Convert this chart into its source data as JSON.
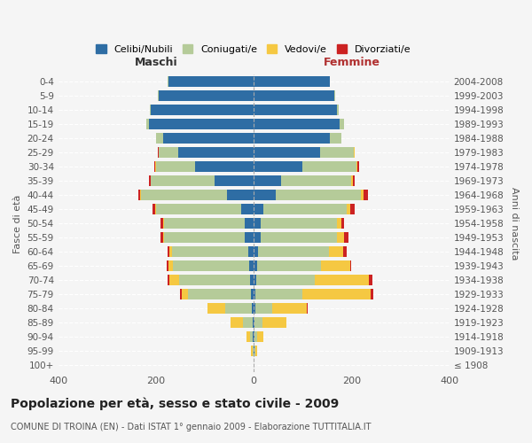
{
  "age_groups": [
    "100+",
    "95-99",
    "90-94",
    "85-89",
    "80-84",
    "75-79",
    "70-74",
    "65-69",
    "60-64",
    "55-59",
    "50-54",
    "45-49",
    "40-44",
    "35-39",
    "30-34",
    "25-29",
    "20-24",
    "15-19",
    "10-14",
    "5-9",
    "0-4"
  ],
  "birth_years": [
    "≤ 1908",
    "1909-1913",
    "1914-1918",
    "1919-1923",
    "1924-1928",
    "1929-1933",
    "1934-1938",
    "1939-1943",
    "1944-1948",
    "1949-1953",
    "1954-1958",
    "1959-1963",
    "1964-1968",
    "1969-1973",
    "1974-1978",
    "1979-1983",
    "1984-1988",
    "1989-1993",
    "1994-1998",
    "1999-2003",
    "2004-2008"
  ],
  "colors": {
    "celibe": "#2e6da4",
    "coniugato": "#b5cb99",
    "vedovo": "#f5c842",
    "divorziato": "#cc2222"
  },
  "maschi": {
    "celibe": [
      0,
      1,
      2,
      2,
      4,
      5,
      8,
      10,
      12,
      18,
      18,
      25,
      55,
      80,
      120,
      155,
      185,
      215,
      210,
      195,
      175
    ],
    "coniugato": [
      0,
      2,
      5,
      20,
      55,
      130,
      145,
      155,
      155,
      165,
      165,
      175,
      175,
      130,
      80,
      40,
      15,
      5,
      3,
      2,
      1
    ],
    "vedovo": [
      0,
      2,
      8,
      25,
      35,
      12,
      20,
      10,
      5,
      3,
      3,
      2,
      2,
      1,
      1,
      0,
      0,
      0,
      0,
      0,
      0
    ],
    "divorziato": [
      0,
      0,
      0,
      0,
      0,
      3,
      3,
      3,
      5,
      5,
      5,
      5,
      5,
      3,
      2,
      1,
      0,
      0,
      0,
      0,
      0
    ]
  },
  "femmine": {
    "nubile": [
      0,
      1,
      2,
      2,
      3,
      4,
      5,
      7,
      8,
      15,
      15,
      20,
      45,
      55,
      100,
      135,
      155,
      175,
      170,
      165,
      155
    ],
    "coniugata": [
      0,
      2,
      5,
      15,
      35,
      95,
      120,
      130,
      145,
      155,
      155,
      170,
      175,
      145,
      110,
      70,
      25,
      10,
      3,
      2,
      1
    ],
    "vedova": [
      0,
      3,
      12,
      50,
      70,
      140,
      110,
      60,
      30,
      15,
      10,
      8,
      5,
      3,
      2,
      1,
      0,
      0,
      0,
      0,
      0
    ],
    "divorziata": [
      0,
      0,
      0,
      0,
      3,
      5,
      8,
      3,
      8,
      8,
      5,
      8,
      8,
      3,
      3,
      1,
      0,
      0,
      0,
      0,
      0
    ]
  },
  "xlim": 400,
  "title": "Popolazione per età, sesso e stato civile - 2009",
  "subtitle": "COMUNE DI TROINA (EN) - Dati ISTAT 1° gennaio 2009 - Elaborazione TUTTITALIA.IT",
  "ylabel_left": "Fasce di età",
  "ylabel_right": "Anni di nascita",
  "xlabel_maschi": "Maschi",
  "xlabel_femmine": "Femmine",
  "legend_labels": [
    "Celibi/Nubili",
    "Coniugati/e",
    "Vedovi/e",
    "Divorziati/e"
  ],
  "bg_color": "#f5f5f5",
  "plot_bg": "#f5f5f5"
}
